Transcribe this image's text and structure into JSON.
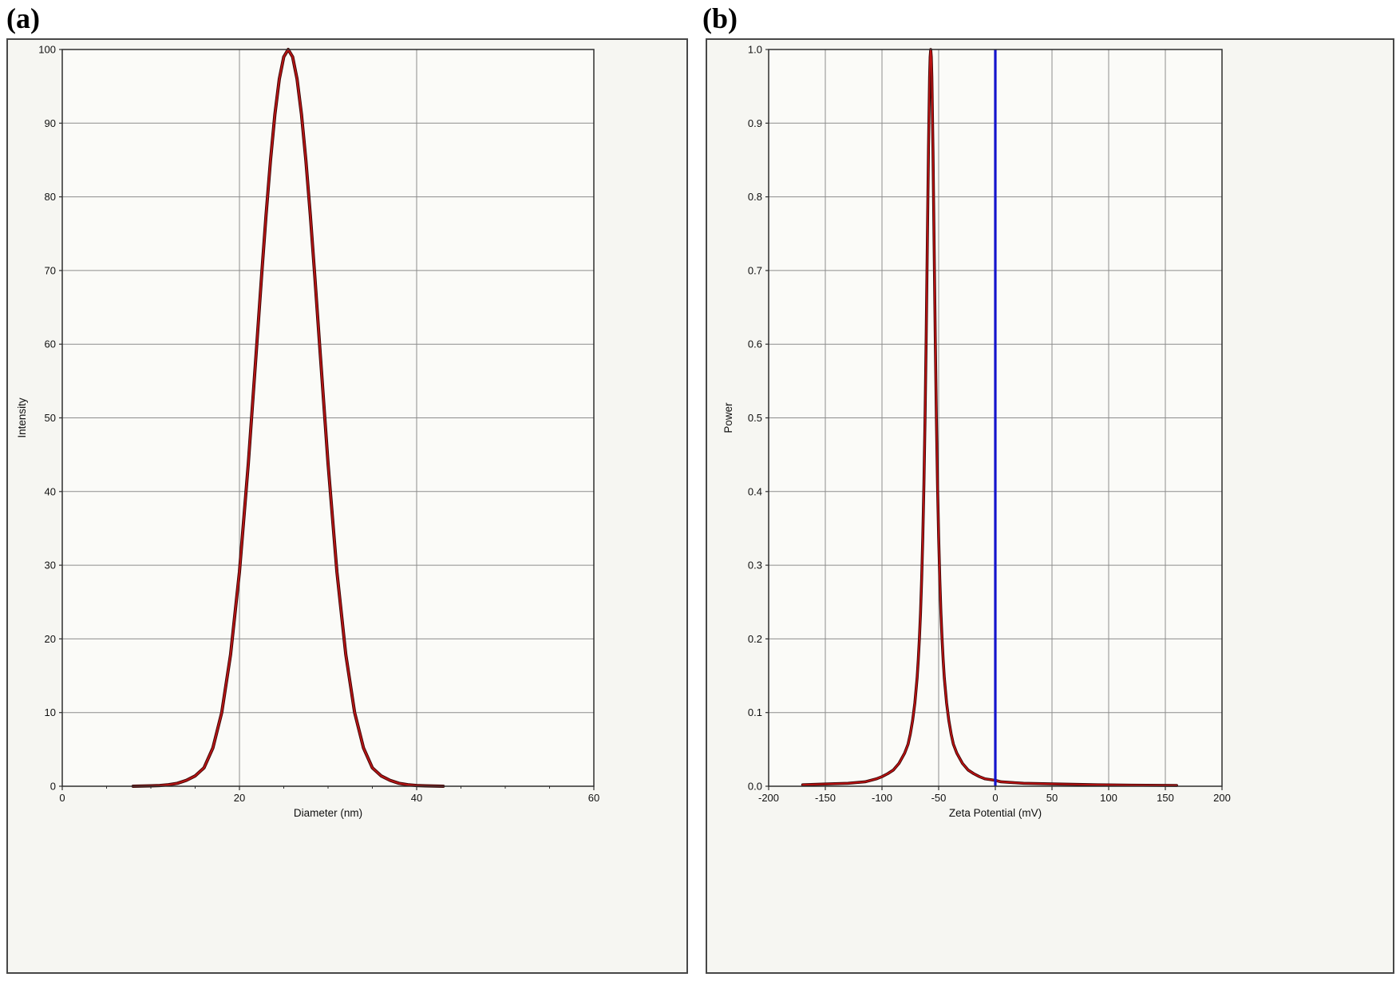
{
  "figure": {
    "panel_a_label": "(a)",
    "panel_b_label": "(b)"
  },
  "chart_data": [
    {
      "id": "a",
      "type": "line",
      "xlabel": "Diameter (nm)",
      "ylabel": "Intensity",
      "xlim": [
        0,
        60
      ],
      "ylim": [
        0,
        100
      ],
      "grid": true,
      "x_ticks": [
        {
          "v": 0,
          "label": "0"
        },
        {
          "v": 20,
          "label": "20"
        },
        {
          "v": 40,
          "label": "40"
        },
        {
          "v": 60,
          "label": "60"
        }
      ],
      "x_minor_ticks": [
        5,
        10,
        15,
        25,
        30,
        35,
        45,
        50,
        55
      ],
      "y_ticks": [
        {
          "v": 0,
          "label": "0"
        },
        {
          "v": 10,
          "label": "10"
        },
        {
          "v": 20,
          "label": "20"
        },
        {
          "v": 30,
          "label": "30"
        },
        {
          "v": 40,
          "label": "40"
        },
        {
          "v": 50,
          "label": "50"
        },
        {
          "v": 60,
          "label": "60"
        },
        {
          "v": 70,
          "label": "70"
        },
        {
          "v": 80,
          "label": "80"
        },
        {
          "v": 90,
          "label": "90"
        },
        {
          "v": 100,
          "label": "100"
        }
      ],
      "x_gridlines": [
        20,
        40
      ],
      "y_gridlines": [
        10,
        20,
        30,
        40,
        50,
        60,
        70,
        80,
        90
      ],
      "series": [
        {
          "name": "size-distribution-curve",
          "color": "#b41414",
          "outline": "#3a0606",
          "width": 2.2,
          "peak": {
            "x": 25.5,
            "y": 100
          },
          "points": [
            [
              8,
              0
            ],
            [
              10,
              0.05
            ],
            [
              11,
              0.1
            ],
            [
              12,
              0.2
            ],
            [
              13,
              0.4
            ],
            [
              14,
              0.8
            ],
            [
              15,
              1.4
            ],
            [
              16,
              2.5
            ],
            [
              17,
              5.2
            ],
            [
              18,
              10
            ],
            [
              19,
              17.9
            ],
            [
              20,
              29.1
            ],
            [
              21,
              43.8
            ],
            [
              22,
              60.7
            ],
            [
              22.5,
              69.3
            ],
            [
              23,
              77.5
            ],
            [
              23.5,
              84.9
            ],
            [
              24,
              91.2
            ],
            [
              24.5,
              96
            ],
            [
              25,
              99
            ],
            [
              25.5,
              100
            ],
            [
              26,
              99
            ],
            [
              26.5,
              96
            ],
            [
              27,
              91.2
            ],
            [
              27.5,
              84.9
            ],
            [
              28,
              77.5
            ],
            [
              28.5,
              69.3
            ],
            [
              29,
              60.7
            ],
            [
              30,
              43.8
            ],
            [
              31,
              29.1
            ],
            [
              32,
              17.9
            ],
            [
              33,
              10
            ],
            [
              34,
              5.2
            ],
            [
              35,
              2.5
            ],
            [
              36,
              1.4
            ],
            [
              37,
              0.8
            ],
            [
              38,
              0.4
            ],
            [
              39,
              0.2
            ],
            [
              40,
              0.1
            ],
            [
              41,
              0.05
            ],
            [
              43,
              0
            ]
          ]
        }
      ]
    },
    {
      "id": "b",
      "type": "line",
      "xlabel": "Zeta Potential (mV)",
      "ylabel": "Power",
      "xlim": [
        -200,
        200
      ],
      "ylim": [
        0,
        1
      ],
      "grid": true,
      "x_ticks": [
        {
          "v": -200,
          "label": "-200"
        },
        {
          "v": -150,
          "label": "-150"
        },
        {
          "v": -100,
          "label": "-100"
        },
        {
          "v": -50,
          "label": "-50"
        },
        {
          "v": 0,
          "label": "0"
        },
        {
          "v": 50,
          "label": "50"
        },
        {
          "v": 100,
          "label": "100"
        },
        {
          "v": 150,
          "label": "150"
        },
        {
          "v": 200,
          "label": "200"
        }
      ],
      "y_ticks": [
        {
          "v": 0,
          "label": "0.0"
        },
        {
          "v": 0.1,
          "label": "0.1"
        },
        {
          "v": 0.2,
          "label": "0.2"
        },
        {
          "v": 0.3,
          "label": "0.3"
        },
        {
          "v": 0.4,
          "label": "0.4"
        },
        {
          "v": 0.5,
          "label": "0.5"
        },
        {
          "v": 0.6,
          "label": "0.6"
        },
        {
          "v": 0.7,
          "label": "0.7"
        },
        {
          "v": 0.8,
          "label": "0.8"
        },
        {
          "v": 0.9,
          "label": "0.9"
        },
        {
          "v": 1,
          "label": "1.0"
        }
      ],
      "x_gridlines": [
        -150,
        -100,
        -50,
        0,
        50,
        100,
        150
      ],
      "y_gridlines": [
        0.1,
        0.2,
        0.3,
        0.4,
        0.5,
        0.6,
        0.7,
        0.8,
        0.9
      ],
      "vlines": [
        {
          "x": 0,
          "color": "#1515cd",
          "width": 3.2,
          "name": "zero-potential-marker-line"
        }
      ],
      "series": [
        {
          "name": "zeta-potential-curve",
          "color": "#c01212",
          "outline": "#3a0606",
          "width": 1.8,
          "peak": {
            "x": -57,
            "y": 1.0
          },
          "points": [
            [
              -170,
              0.002
            ],
            [
              -150,
              0.003
            ],
            [
              -130,
              0.004
            ],
            [
              -115,
              0.006
            ],
            [
              -105,
              0.01
            ],
            [
              -100,
              0.013
            ],
            [
              -95,
              0.017
            ],
            [
              -90,
              0.022
            ],
            [
              -85,
              0.031
            ],
            [
              -80,
              0.045
            ],
            [
              -77,
              0.057
            ],
            [
              -75,
              0.071
            ],
            [
              -73,
              0.089
            ],
            [
              -71,
              0.113
            ],
            [
              -69,
              0.147
            ],
            [
              -68,
              0.171
            ],
            [
              -67,
              0.2
            ],
            [
              -66,
              0.235
            ],
            [
              -65,
              0.281
            ],
            [
              -64,
              0.338
            ],
            [
              -63,
              0.41
            ],
            [
              -62,
              0.5
            ],
            [
              -61,
              0.61
            ],
            [
              -60,
              0.735
            ],
            [
              -59,
              0.862
            ],
            [
              -58,
              0.962
            ],
            [
              -57.5,
              0.99
            ],
            [
              -57,
              1
            ],
            [
              -56.5,
              0.99
            ],
            [
              -56,
              0.962
            ],
            [
              -55,
              0.862
            ],
            [
              -54,
              0.735
            ],
            [
              -53,
              0.61
            ],
            [
              -52,
              0.5
            ],
            [
              -51,
              0.41
            ],
            [
              -50,
              0.338
            ],
            [
              -49,
              0.281
            ],
            [
              -48,
              0.235
            ],
            [
              -47,
              0.2
            ],
            [
              -46,
              0.171
            ],
            [
              -45,
              0.147
            ],
            [
              -43,
              0.113
            ],
            [
              -41,
              0.089
            ],
            [
              -39,
              0.071
            ],
            [
              -37,
              0.057
            ],
            [
              -34,
              0.045
            ],
            [
              -29,
              0.031
            ],
            [
              -24,
              0.022
            ],
            [
              -19,
              0.017
            ],
            [
              -14,
              0.013
            ],
            [
              -9,
              0.01
            ],
            [
              0,
              0.008
            ],
            [
              5,
              0.006
            ],
            [
              25,
              0.004
            ],
            [
              55,
              0.003
            ],
            [
              90,
              0.002
            ],
            [
              120,
              0.0015
            ],
            [
              160,
              0.001
            ]
          ]
        }
      ]
    }
  ]
}
